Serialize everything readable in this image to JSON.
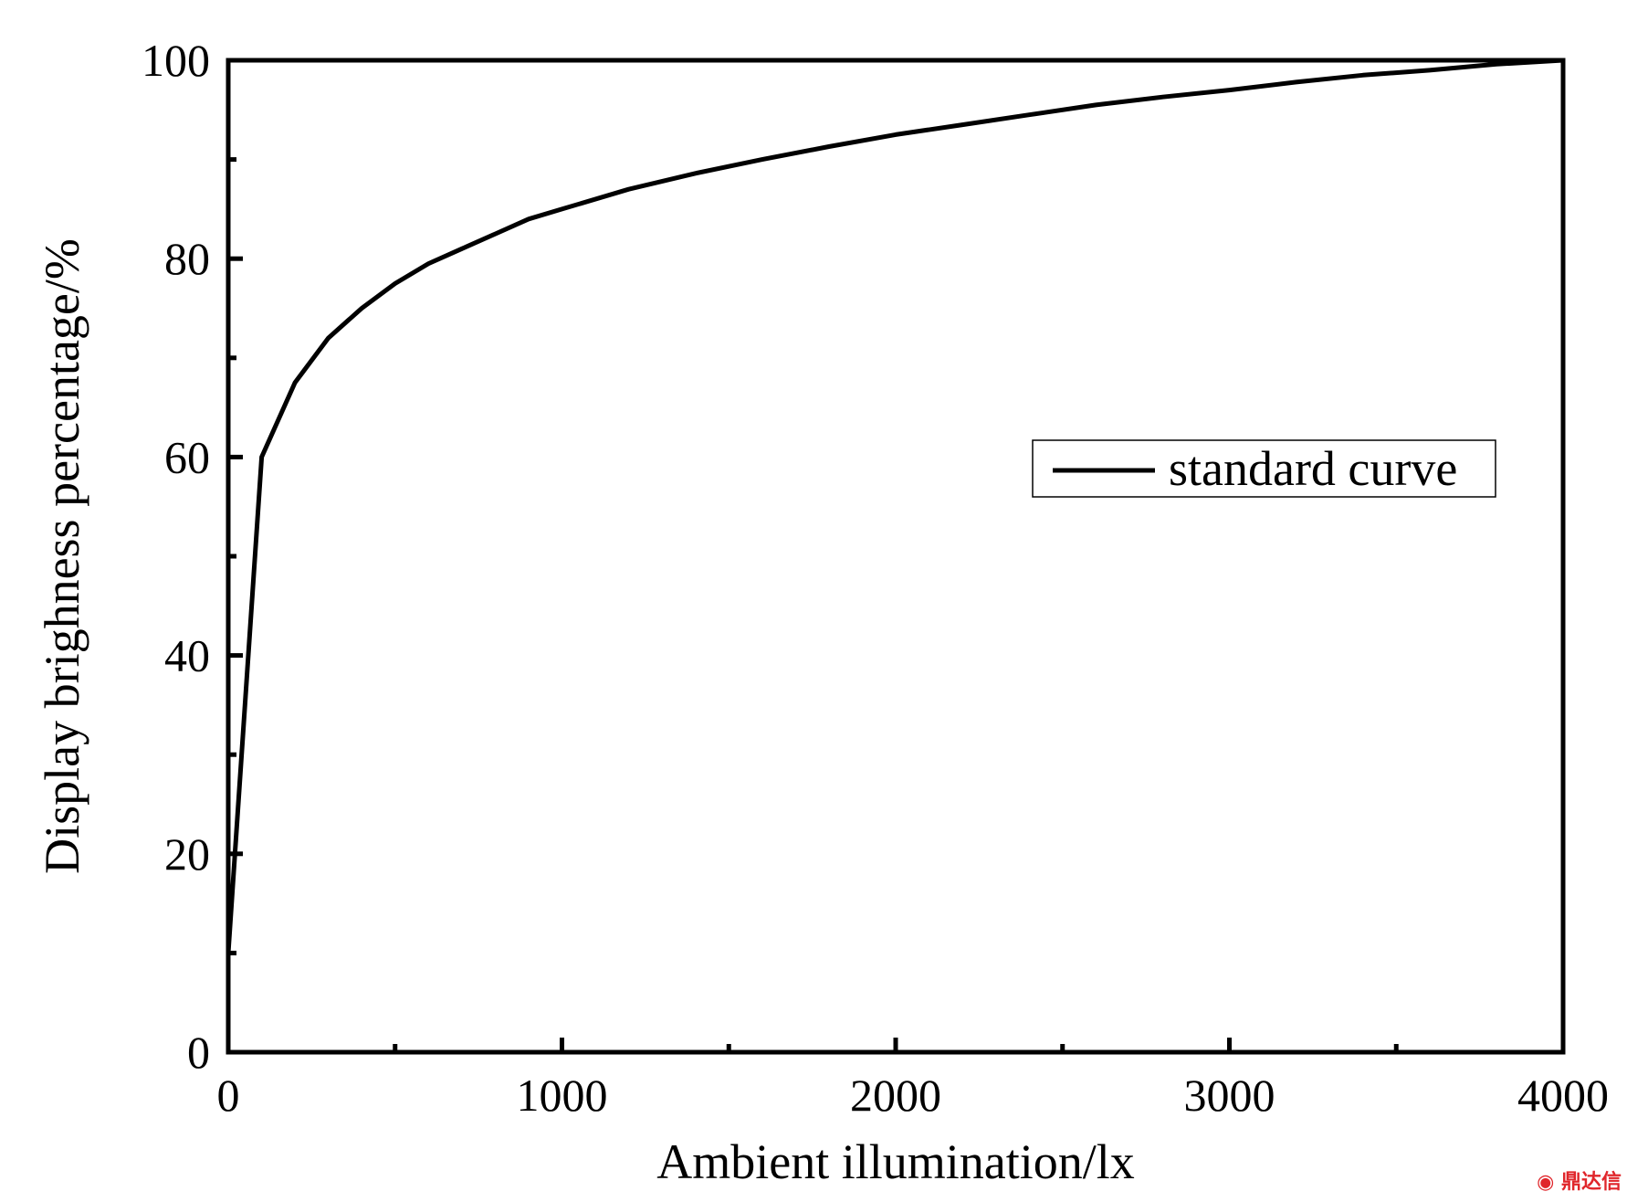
{
  "colors": {
    "line": "#000000",
    "axis": "#000000",
    "watermark": "#e0262b"
  },
  "watermark": {
    "text": "鼎达信",
    "icon": "logo-icon"
  },
  "chart_data": {
    "type": "line",
    "title": "",
    "xlabel": "Ambient illumination/lx",
    "ylabel": "Display brighness percentage/%",
    "xlim": [
      0,
      4000
    ],
    "ylim": [
      0,
      100
    ],
    "xticks": [
      0,
      1000,
      2000,
      3000,
      4000
    ],
    "yticks": [
      0,
      20,
      40,
      60,
      80,
      100
    ],
    "x_minor_ticks": [
      500,
      1500,
      2500,
      3500
    ],
    "y_minor_ticks": [
      10,
      30,
      50,
      70,
      90
    ],
    "grid": false,
    "legend": {
      "position": "center-right",
      "entries": [
        "standard curve"
      ]
    },
    "series": [
      {
        "name": "standard curve",
        "x": [
          0,
          100,
          200,
          300,
          400,
          500,
          600,
          700,
          800,
          900,
          1000,
          1200,
          1400,
          1600,
          1800,
          2000,
          2200,
          2400,
          2600,
          2800,
          3000,
          3200,
          3400,
          3600,
          3800,
          4000
        ],
        "y": [
          10,
          60,
          67.5,
          72,
          75,
          77.5,
          79.5,
          81,
          82.5,
          84,
          85,
          87,
          88.6,
          90,
          91.3,
          92.5,
          93.5,
          94.5,
          95.5,
          96.3,
          97,
          97.8,
          98.5,
          99,
          99.6,
          100
        ]
      }
    ]
  }
}
